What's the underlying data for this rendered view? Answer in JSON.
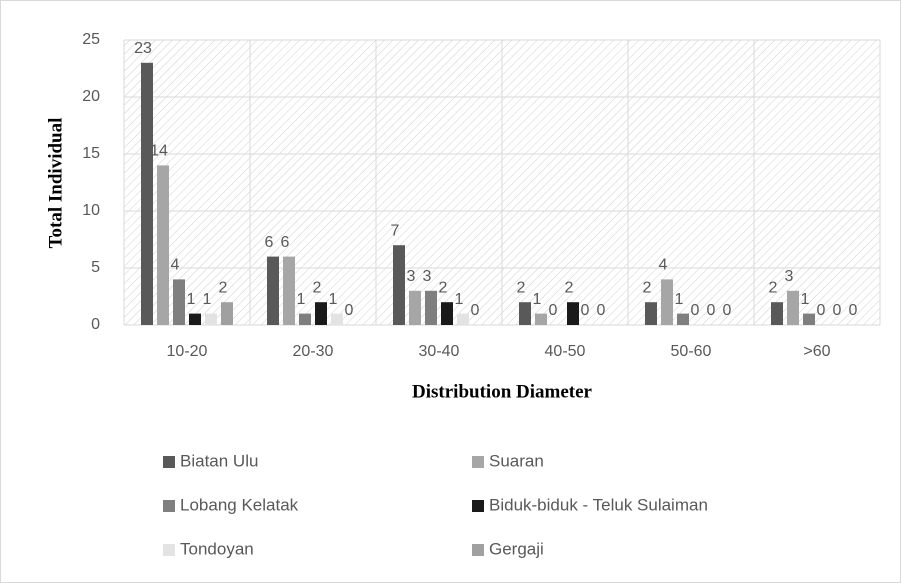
{
  "chart_data": {
    "type": "bar",
    "xlabel": "Distribution Diameter",
    "ylabel": "Total Individual",
    "categories": [
      "10-20",
      "20-30",
      "30-40",
      "40-50",
      "50-60",
      ">60"
    ],
    "series": [
      {
        "name": "Biatan Ulu",
        "color": "#595959",
        "values": [
          23,
          6,
          7,
          2,
          2,
          2
        ]
      },
      {
        "name": "Suaran",
        "color": "#a6a6a6",
        "values": [
          14,
          6,
          3,
          1,
          4,
          3
        ]
      },
      {
        "name": "Lobang Kelatak",
        "color": "#7f7f7f",
        "values": [
          4,
          1,
          3,
          0,
          1,
          1
        ]
      },
      {
        "name": "Biduk-biduk - Teluk Sulaiman",
        "color": "#1a1a1a",
        "values": [
          1,
          2,
          2,
          2,
          0,
          0
        ]
      },
      {
        "name": "Tondoyan",
        "color": "#e3e3e3",
        "values": [
          1,
          1,
          1,
          0,
          0,
          0
        ]
      },
      {
        "name": "Gergaji",
        "color": "#a0a0a0",
        "values": [
          2,
          0,
          0,
          0,
          0,
          0
        ]
      }
    ],
    "ylim": [
      0,
      25
    ],
    "yticks": [
      0,
      5,
      10,
      15,
      20,
      25
    ],
    "grid": true,
    "legend": "bottom"
  }
}
